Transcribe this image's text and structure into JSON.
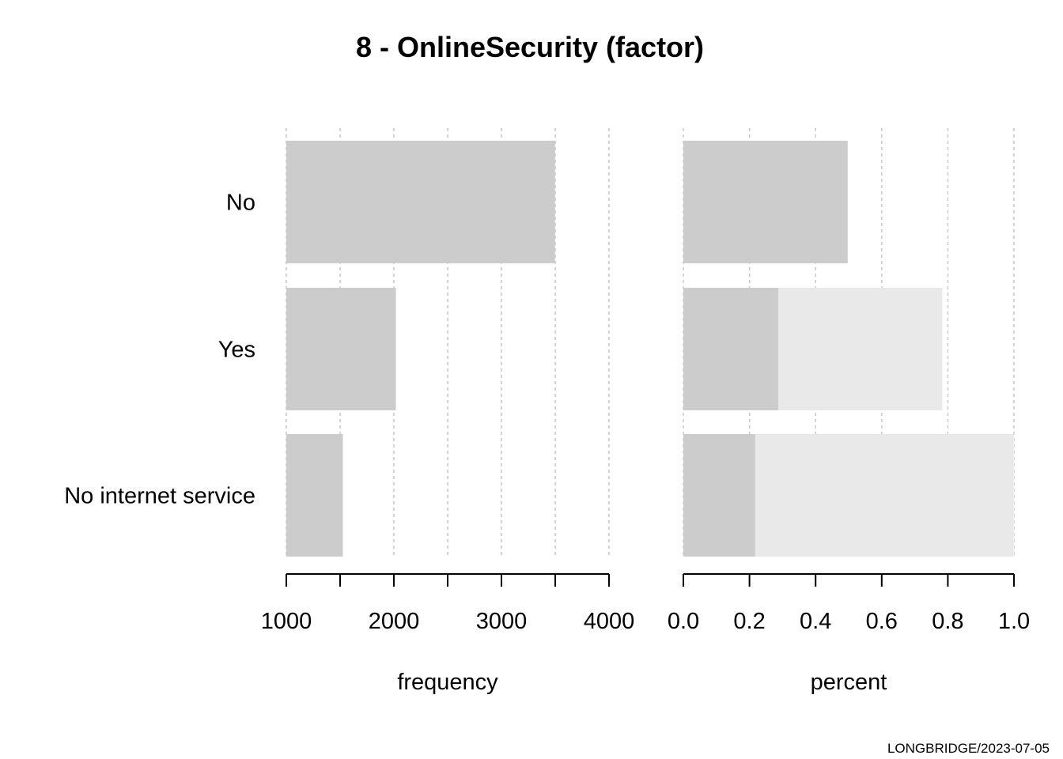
{
  "title": "8 - OnlineSecurity (factor)",
  "footer": "LONGBRIDGE/2023-07-05",
  "colors": {
    "bar": "#cccccc",
    "cumulative": "#e9e9e9",
    "grid": "#c8c8c8",
    "axis": "#000000"
  },
  "chart_data": [
    {
      "type": "bar",
      "orientation": "horizontal",
      "categories": [
        "No",
        "Yes",
        "No internet service"
      ],
      "values": [
        3498,
        2019,
        1526
      ],
      "xlabel": "frequency",
      "xlim": [
        1000,
        4000
      ],
      "tick_values": [
        1000,
        1500,
        2000,
        2500,
        3000,
        3500,
        4000
      ],
      "tick_labels": [
        "1000",
        "",
        "2000",
        "",
        "3000",
        "",
        "4000"
      ],
      "grid": true
    },
    {
      "type": "bar",
      "orientation": "horizontal",
      "categories": [
        "No",
        "Yes",
        "No internet service"
      ],
      "series": [
        {
          "values": [
            0.497,
            0.287,
            0.217
          ]
        },
        {
          "values": [
            0.497,
            0.783,
            1.0
          ]
        }
      ],
      "xlabel": "percent",
      "xlim": [
        0,
        1
      ],
      "tick_values": [
        0,
        0.2,
        0.4,
        0.6,
        0.8,
        1.0
      ],
      "tick_labels": [
        "0.0",
        "0.2",
        "0.4",
        "0.6",
        "0.8",
        "1.0"
      ],
      "grid": true
    }
  ]
}
